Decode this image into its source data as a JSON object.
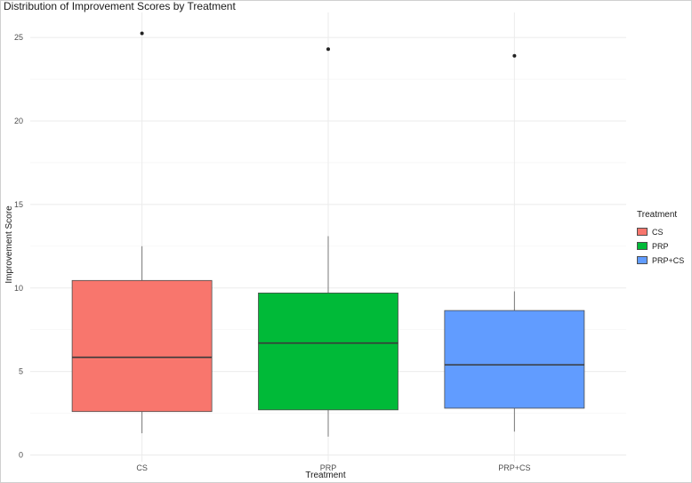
{
  "chart_data": {
    "type": "boxplot",
    "title": "Distribution of Improvement Scores by Treatment",
    "xlabel": "Treatment",
    "ylabel": "Improvement Score",
    "ylim": [
      -0.4,
      26.5
    ],
    "yticks": [
      0,
      5,
      10,
      15,
      20,
      25
    ],
    "grid": true,
    "legend": {
      "title": "Treatment",
      "position": "right"
    },
    "categories": [
      "CS",
      "PRP",
      "PRP+CS"
    ],
    "series": [
      {
        "name": "CS",
        "color": "#F8766D",
        "whisker_low": 1.3,
        "q1": 2.6,
        "median": 5.85,
        "q3": 10.45,
        "whisker_high": 12.5,
        "outliers": [
          25.25
        ]
      },
      {
        "name": "PRP",
        "color": "#00BA38",
        "whisker_low": 1.1,
        "q1": 2.7,
        "median": 6.7,
        "q3": 9.7,
        "whisker_high": 13.1,
        "outliers": [
          24.3
        ]
      },
      {
        "name": "PRP+CS",
        "color": "#619CFF",
        "whisker_low": 1.4,
        "q1": 2.8,
        "median": 5.4,
        "q3": 8.65,
        "whisker_high": 9.8,
        "outliers": [
          23.9
        ]
      }
    ]
  }
}
